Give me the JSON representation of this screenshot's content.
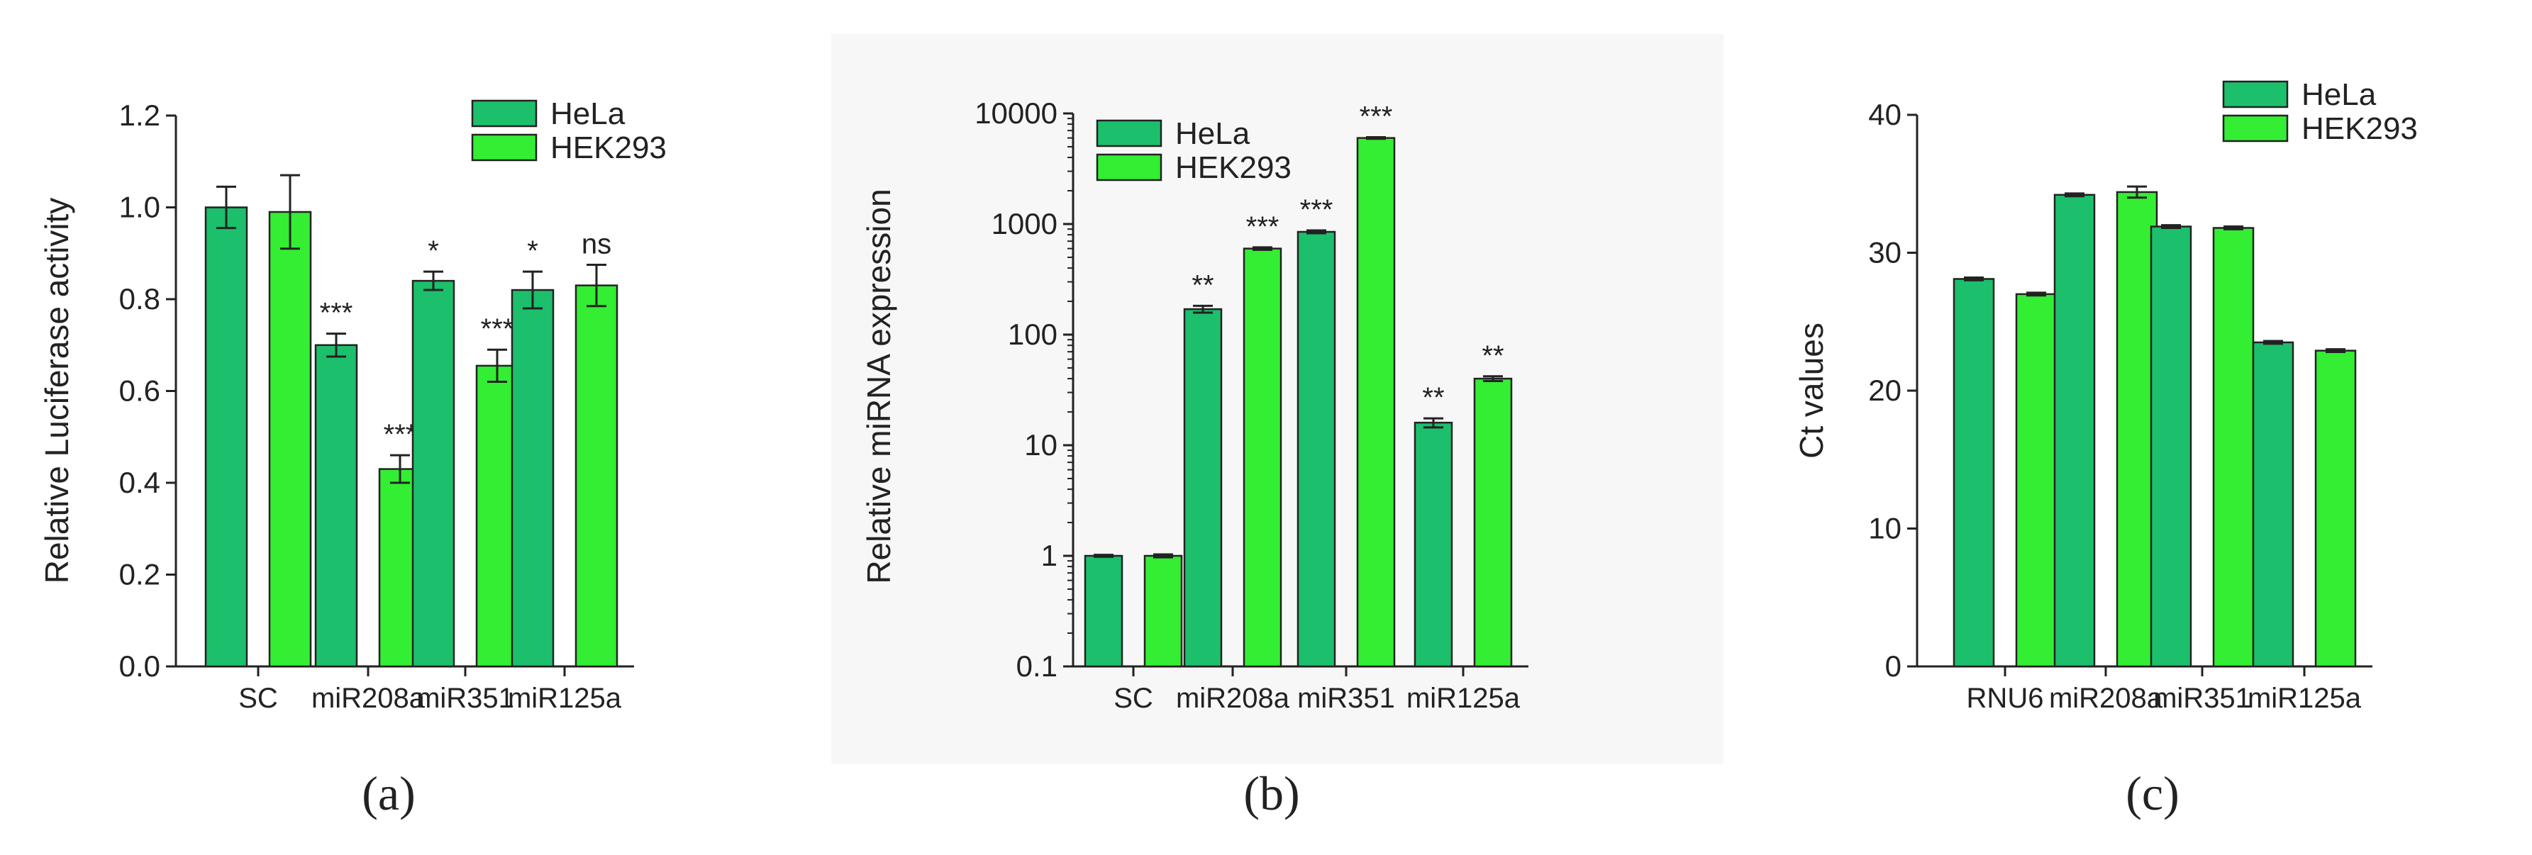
{
  "colors": {
    "hela": "#1cbf6b",
    "hek293": "#33ee33",
    "axis": "#222222",
    "text": "#222222"
  },
  "chart_data": [
    {
      "id": "a",
      "type": "bar",
      "caption": "(a)",
      "ylabel": "Relative Luciferase activity",
      "ylim": [
        0,
        1.2
      ],
      "yscale": "linear",
      "yticks": [
        0.0,
        0.2,
        0.4,
        0.6,
        0.8,
        1.0,
        1.2
      ],
      "ytick_labels": [
        "0.0",
        "0.2",
        "0.4",
        "0.6",
        "0.8",
        "1.0",
        "1.2"
      ],
      "categories": [
        "SC",
        "miR208a",
        "miR351",
        "miR125a"
      ],
      "legend_position": "top-right",
      "series": [
        {
          "name": "HeLa",
          "values": [
            1.0,
            0.7,
            0.84,
            0.82
          ],
          "errors": [
            0.045,
            0.025,
            0.02,
            0.04
          ],
          "annotations": [
            "",
            "***",
            "*",
            "*"
          ]
        },
        {
          "name": "HEK293",
          "values": [
            0.99,
            0.43,
            0.655,
            0.83
          ],
          "errors": [
            0.08,
            0.03,
            0.035,
            0.045
          ],
          "annotations": [
            "",
            "***",
            "***",
            "ns"
          ]
        }
      ]
    },
    {
      "id": "b",
      "type": "bar",
      "caption": "(b)",
      "ylabel": "Relative miRNA expression",
      "ylim": [
        0.1,
        10000
      ],
      "yscale": "log",
      "yticks": [
        0.1,
        1,
        10,
        100,
        1000,
        10000
      ],
      "ytick_labels": [
        "0.1",
        "1",
        "10",
        "100",
        "1000",
        "10000"
      ],
      "categories": [
        "SC",
        "miR208a",
        "miR351",
        "miR125a"
      ],
      "legend_position": "top-left",
      "series": [
        {
          "name": "HeLa",
          "values": [
            1.0,
            170,
            850,
            16
          ],
          "errors": [
            0.02,
            12,
            25,
            1.5
          ],
          "annotations": [
            "",
            "**",
            "***",
            "**"
          ]
        },
        {
          "name": "HEK293",
          "values": [
            1.0,
            600,
            6000,
            40
          ],
          "errors": [
            0.03,
            15,
            100,
            2
          ],
          "annotations": [
            "",
            "***",
            "***",
            "**"
          ]
        }
      ]
    },
    {
      "id": "c",
      "type": "bar",
      "caption": "(c)",
      "ylabel": "Ct values",
      "ylim": [
        0,
        40
      ],
      "yscale": "linear",
      "yticks": [
        0,
        10,
        20,
        30,
        40
      ],
      "ytick_labels": [
        "0",
        "10",
        "20",
        "30",
        "40"
      ],
      "categories": [
        "RNU6",
        "miR208a",
        "miR351",
        "miR125a"
      ],
      "legend_position": "top-right",
      "series": [
        {
          "name": "HeLa",
          "values": [
            28.1,
            34.2,
            31.9,
            23.5
          ],
          "errors": [
            0.1,
            0.1,
            0.1,
            0.1
          ],
          "annotations": [
            "",
            "",
            "",
            ""
          ]
        },
        {
          "name": "HEK293",
          "values": [
            27.0,
            34.4,
            31.8,
            22.9
          ],
          "errors": [
            0.1,
            0.4,
            0.1,
            0.1
          ],
          "annotations": [
            "",
            "",
            "",
            ""
          ]
        }
      ]
    }
  ]
}
